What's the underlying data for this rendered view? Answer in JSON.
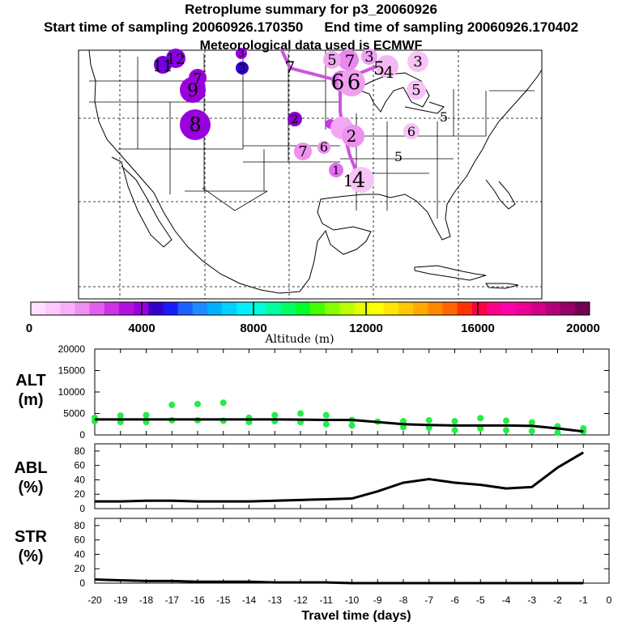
{
  "header": {
    "title": "Retroplume summary for p3_20060926",
    "start_label": "Start time of sampling 20060926.170350",
    "end_label": "End time of sampling 20060926.170402",
    "met_label": "Meteorological data used is ECMWF"
  },
  "colorbar": {
    "xlabel": "Altitude (m)",
    "ticks": [
      "0",
      "4000",
      "8000",
      "12000",
      "16000",
      "20000"
    ],
    "colors": [
      "#ffe0ff",
      "#ffc8ff",
      "#f7b0f7",
      "#ee90ee",
      "#e060ee",
      "#cc33e6",
      "#b30fe0",
      "#9900dd",
      "#3300cc",
      "#1a1aff",
      "#1e5fff",
      "#1a8cff",
      "#00b0ff",
      "#00d0ff",
      "#00f0ff",
      "#00ffd8",
      "#00ffa0",
      "#00ff66",
      "#00ff2a",
      "#44ff00",
      "#88ff00",
      "#bbff00",
      "#e6ff00",
      "#ffff00",
      "#ffe600",
      "#ffc800",
      "#ffaa00",
      "#ff8800",
      "#ff6600",
      "#ff3300",
      "#ff0044",
      "#ff0088",
      "#ff00aa",
      "#ee0099",
      "#d40088",
      "#b40078",
      "#940066",
      "#740055"
    ]
  },
  "map": {
    "labels": [
      "12",
      "11",
      "7",
      "9",
      "8",
      "3",
      "3",
      "2",
      "2",
      "7",
      "6",
      "4",
      "1",
      "1",
      "5",
      "5",
      "6",
      "5",
      "5",
      "7",
      "6",
      "6",
      "3",
      "7",
      "3",
      "5",
      "4"
    ]
  },
  "xaxis": {
    "label": "Travel time (days)",
    "ticks": [
      "-20",
      "-19",
      "-18",
      "-17",
      "-16",
      "-15",
      "-14",
      "-13",
      "-12",
      "-11",
      "-10",
      "-9",
      "-8",
      "-7",
      "-6",
      "-5",
      "-4",
      "-3",
      "-2",
      "-1",
      "0"
    ]
  },
  "chart_data": [
    {
      "type": "line",
      "title": "ALT (m)",
      "ylabel": "ALT (m)",
      "ylim": [
        0,
        20000
      ],
      "yticks": [
        "0",
        "5000",
        "10000",
        "15000",
        "20000"
      ],
      "x": [
        -20,
        -19,
        -18,
        -17,
        -16,
        -15,
        -14,
        -13,
        -12,
        -11,
        -10,
        -9,
        -8,
        -7,
        -6,
        -5,
        -4,
        -3,
        -2,
        -1
      ],
      "values": [
        3600,
        3600,
        3600,
        3600,
        3600,
        3600,
        3600,
        3600,
        3550,
        3500,
        3500,
        3000,
        2500,
        2300,
        2200,
        2200,
        2200,
        2100,
        1500,
        800
      ],
      "scatter_points": [
        {
          "x": -20,
          "y": 3200
        },
        {
          "x": -20,
          "y": 4000
        },
        {
          "x": -19,
          "y": 3000
        },
        {
          "x": -19,
          "y": 4500
        },
        {
          "x": -18,
          "y": 3000
        },
        {
          "x": -18,
          "y": 4600
        },
        {
          "x": -17,
          "y": 3400
        },
        {
          "x": -17,
          "y": 7000
        },
        {
          "x": -16,
          "y": 3400
        },
        {
          "x": -16,
          "y": 7200
        },
        {
          "x": -15,
          "y": 3300
        },
        {
          "x": -15,
          "y": 7500
        },
        {
          "x": -14,
          "y": 3000
        },
        {
          "x": -14,
          "y": 4000
        },
        {
          "x": -13,
          "y": 3200
        },
        {
          "x": -13,
          "y": 4600
        },
        {
          "x": -12,
          "y": 3000
        },
        {
          "x": -12,
          "y": 5000
        },
        {
          "x": -11,
          "y": 2500
        },
        {
          "x": -11,
          "y": 4600
        },
        {
          "x": -10,
          "y": 3500
        },
        {
          "x": -10,
          "y": 2200
        },
        {
          "x": -9,
          "y": 3100
        },
        {
          "x": -8,
          "y": 1800
        },
        {
          "x": -8,
          "y": 3200
        },
        {
          "x": -7,
          "y": 1700
        },
        {
          "x": -7,
          "y": 3400
        },
        {
          "x": -6,
          "y": 1100
        },
        {
          "x": -6,
          "y": 3200
        },
        {
          "x": -5,
          "y": 1500
        },
        {
          "x": -5,
          "y": 3900
        },
        {
          "x": -4,
          "y": 1100
        },
        {
          "x": -4,
          "y": 3300
        },
        {
          "x": -3,
          "y": 900
        },
        {
          "x": -3,
          "y": 2900
        },
        {
          "x": -2,
          "y": 500
        },
        {
          "x": -2,
          "y": 2000
        },
        {
          "x": -1,
          "y": 800
        },
        {
          "x": -1,
          "y": 1500
        }
      ]
    },
    {
      "type": "line",
      "title": "ABL (%)",
      "ylabel": "ABL (%)",
      "ylim": [
        0,
        90
      ],
      "yticks": [
        "0",
        "20",
        "40",
        "60",
        "80"
      ],
      "x": [
        -20,
        -19,
        -18,
        -17,
        -16,
        -15,
        -14,
        -13,
        -12,
        -11,
        -10,
        -9,
        -8,
        -7,
        -6,
        -5,
        -4,
        -3,
        -2,
        -1
      ],
      "values": [
        10,
        10,
        11,
        11,
        10,
        10,
        10,
        11,
        12,
        13,
        14,
        24,
        36,
        41,
        36,
        33,
        28,
        30,
        57,
        78
      ]
    },
    {
      "type": "line",
      "title": "STR (%)",
      "ylabel": "STR (%)",
      "ylim": [
        0,
        90
      ],
      "yticks": [
        "0",
        "20",
        "40",
        "60",
        "80"
      ],
      "x": [
        -20,
        -19,
        -18,
        -17,
        -16,
        -15,
        -14,
        -13,
        -12,
        -11,
        -10,
        -9,
        -8,
        -7,
        -6,
        -5,
        -4,
        -3,
        -2,
        -1
      ],
      "values": [
        5,
        4,
        3,
        3,
        2,
        2,
        2,
        1,
        1,
        1,
        0,
        0,
        0,
        0,
        0,
        0,
        0,
        0,
        0,
        0
      ]
    }
  ]
}
